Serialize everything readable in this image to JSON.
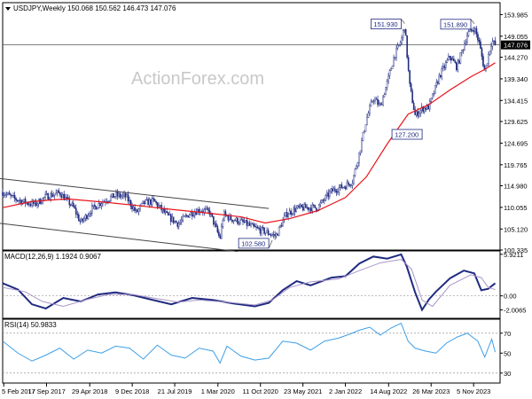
{
  "chart_data": [
    {
      "type": "candlestick",
      "title": "USDJPY,Weekly 150.068 150.562 146.473 147.076",
      "watermark": "ActionForex.com",
      "ylim": [
        100.335,
        156.7
      ],
      "y_ticks": [
        "153.985",
        "149.055",
        "144.270",
        "139.340",
        "134.415",
        "129.625",
        "124.695",
        "119.765",
        "114.980",
        "110.055",
        "105.120",
        "100.335"
      ],
      "last_price": {
        "label": "147.076",
        "value": 147.076
      },
      "annotations": [
        {
          "label": "151.930",
          "value": 151.93,
          "x": "Oct 2022"
        },
        {
          "label": "151.890",
          "value": 151.89,
          "x": "Oct 2023"
        },
        {
          "label": "127.200",
          "value": 127.2,
          "x": "Jan 2023"
        },
        {
          "label": "102.580",
          "value": 102.58,
          "x": "Mar 2021"
        }
      ],
      "series": [
        {
          "name": "price",
          "color": "#1f2a80",
          "x": [
            2017.08,
            2017.25,
            2017.45,
            2017.55,
            2017.7,
            2017.9,
            2018.1,
            2018.2,
            2018.35,
            2018.5,
            2018.7,
            2018.85,
            2019.0,
            2019.1,
            2019.25,
            2019.45,
            2019.6,
            2019.75,
            2019.9,
            2020.05,
            2020.2,
            2020.25,
            2020.35,
            2020.55,
            2020.7,
            2020.85,
            2021.0,
            2021.15,
            2021.3,
            2021.45,
            2021.6,
            2021.8,
            2022.0,
            2022.1,
            2022.2,
            2022.3,
            2022.4,
            2022.5,
            2022.6,
            2022.7,
            2022.8,
            2022.85,
            2022.92,
            2023.0,
            2023.1,
            2023.2,
            2023.35,
            2023.5,
            2023.6,
            2023.75,
            2023.85,
            2023.92,
            2024.0,
            2024.1,
            2024.15
          ],
          "values": [
            113.5,
            112.0,
            111.0,
            110.8,
            112.5,
            113.4,
            110.0,
            106.5,
            109.5,
            111.3,
            112.8,
            112.5,
            108.8,
            111.0,
            111.5,
            108.0,
            106.3,
            108.5,
            109.5,
            109.0,
            102.9,
            108.5,
            107.5,
            106.5,
            105.3,
            104.5,
            103.5,
            108.5,
            109.8,
            110.0,
            110.0,
            113.8,
            115.0,
            116.0,
            122.5,
            130.0,
            135.0,
            133.0,
            138.5,
            144.5,
            148.0,
            151.6,
            138.0,
            131.0,
            132.5,
            133.0,
            140.0,
            144.5,
            142.0,
            149.5,
            151.0,
            147.5,
            141.0,
            148.0,
            147.1
          ]
        },
        {
          "name": "ma",
          "color": "#e8141c",
          "x": [
            2017.08,
            2017.5,
            2018.0,
            2018.5,
            2019.0,
            2019.5,
            2020.0,
            2020.5,
            2020.85,
            2021.2,
            2021.6,
            2022.0,
            2022.3,
            2022.6,
            2022.9,
            2023.2,
            2023.5,
            2023.8,
            2024.0,
            2024.15
          ],
          "values": [
            110.0,
            111.4,
            112.0,
            111.3,
            110.5,
            109.6,
            108.8,
            107.9,
            106.5,
            107.5,
            109.3,
            112.3,
            117.0,
            124.5,
            131.3,
            133.5,
            136.8,
            139.8,
            141.5,
            143.0
          ]
        }
      ],
      "channels": [
        {
          "color": "#444444",
          "x": [
            2017.0,
            2020.9
          ],
          "values": [
            116.7,
            109.8
          ]
        },
        {
          "color": "#444444",
          "x": [
            2017.0,
            2020.45
          ],
          "values": [
            106.5,
            100.0
          ]
        }
      ]
    },
    {
      "type": "line",
      "title": "MACD(12,26,9) 1.1924 0.9067",
      "ylim": [
        -3.2,
        6.4
      ],
      "y_ticks": [
        "5.9211",
        "0.00",
        "-2.0065"
      ],
      "hline": 0,
      "series": [
        {
          "name": "MACD",
          "color": "#1f2a80",
          "width": 2,
          "x": [
            2017.08,
            2017.3,
            2017.5,
            2017.7,
            2017.95,
            2018.2,
            2018.45,
            2018.7,
            2018.95,
            2019.2,
            2019.5,
            2019.8,
            2020.1,
            2020.4,
            2020.7,
            2020.9,
            2021.1,
            2021.3,
            2021.5,
            2021.8,
            2022.0,
            2022.2,
            2022.4,
            2022.6,
            2022.8,
            2022.88,
            2023.0,
            2023.1,
            2023.2,
            2023.3,
            2023.5,
            2023.7,
            2023.85,
            2023.95,
            2024.05,
            2024.15
          ],
          "values": [
            1.8,
            0.9,
            -1.2,
            -1.8,
            -0.3,
            -0.8,
            0.2,
            0.5,
            0.1,
            -0.5,
            -1.2,
            -0.3,
            -0.6,
            -1.1,
            -1.5,
            -1.0,
            0.8,
            2.1,
            1.5,
            2.6,
            2.8,
            4.6,
            5.6,
            5.3,
            5.9,
            4.2,
            0.5,
            -2.0,
            -0.5,
            0.6,
            2.5,
            3.6,
            3.2,
            0.8,
            1.0,
            1.8
          ]
        },
        {
          "name": "Signal",
          "color": "#aa96c8",
          "width": 1,
          "x": [
            2017.08,
            2017.4,
            2017.65,
            2017.95,
            2018.3,
            2018.6,
            2018.95,
            2019.3,
            2019.6,
            2019.9,
            2020.3,
            2020.7,
            2020.95,
            2021.2,
            2021.5,
            2021.9,
            2022.2,
            2022.5,
            2022.8,
            2022.95,
            2023.1,
            2023.25,
            2023.5,
            2023.8,
            2023.95,
            2024.05,
            2024.15
          ],
          "values": [
            1.2,
            0.6,
            -0.8,
            -1.5,
            -0.5,
            0.2,
            0.2,
            -0.4,
            -0.9,
            -0.6,
            -0.9,
            -1.3,
            -0.6,
            1.2,
            2.0,
            2.4,
            3.6,
            4.7,
            5.2,
            3.8,
            -0.6,
            -1.5,
            1.5,
            3.0,
            2.6,
            1.2,
            0.9
          ]
        }
      ]
    },
    {
      "type": "line",
      "title": "RSI(14) 50.9833",
      "ylim": [
        20,
        84
      ],
      "y_ticks": [
        "70",
        "50",
        "30"
      ],
      "hlines": [
        70,
        30
      ],
      "series": [
        {
          "name": "RSI",
          "color": "#3d9fe8",
          "width": 1,
          "x": [
            2017.08,
            2017.3,
            2017.5,
            2017.7,
            2017.9,
            2018.1,
            2018.3,
            2018.5,
            2018.7,
            2018.9,
            2019.1,
            2019.3,
            2019.5,
            2019.7,
            2019.9,
            2020.1,
            2020.2,
            2020.3,
            2020.5,
            2020.7,
            2020.9,
            2021.1,
            2021.3,
            2021.5,
            2021.7,
            2021.9,
            2022.1,
            2022.2,
            2022.35,
            2022.5,
            2022.65,
            2022.8,
            2022.9,
            2023.0,
            2023.15,
            2023.3,
            2023.45,
            2023.6,
            2023.75,
            2023.9,
            2024.0,
            2024.1,
            2024.15
          ],
          "values": [
            62,
            50,
            42,
            48,
            55,
            44,
            53,
            50,
            57,
            55,
            44,
            58,
            48,
            45,
            55,
            52,
            40,
            57,
            47,
            43,
            45,
            62,
            60,
            53,
            62,
            65,
            70,
            73,
            76,
            68,
            75,
            80,
            62,
            55,
            52,
            50,
            60,
            66,
            70,
            62,
            46,
            64,
            51
          ]
        }
      ]
    }
  ],
  "x_axis": {
    "tick_labels": [
      "5 Feb 2017",
      "17 Sep 2017",
      "29 Apr 2018",
      "9 Dec 2018",
      "21 Jul 2019",
      "1 Mar 2020",
      "11 Oct 2020",
      "23 May 2021",
      "2 Jan 2022",
      "14 Aug 2022",
      "26 Mar 2023",
      "5 Nov 2023"
    ],
    "tick_values": [
      2017.096,
      2017.71,
      2018.33,
      2018.94,
      2019.55,
      2020.17,
      2020.78,
      2021.39,
      2022.0,
      2022.62,
      2023.23,
      2023.84
    ],
    "range": [
      2017.08,
      2024.22
    ]
  },
  "colors": {
    "axis": "#000000",
    "grid": "#000000",
    "annotation_box": "#1f2a80"
  }
}
